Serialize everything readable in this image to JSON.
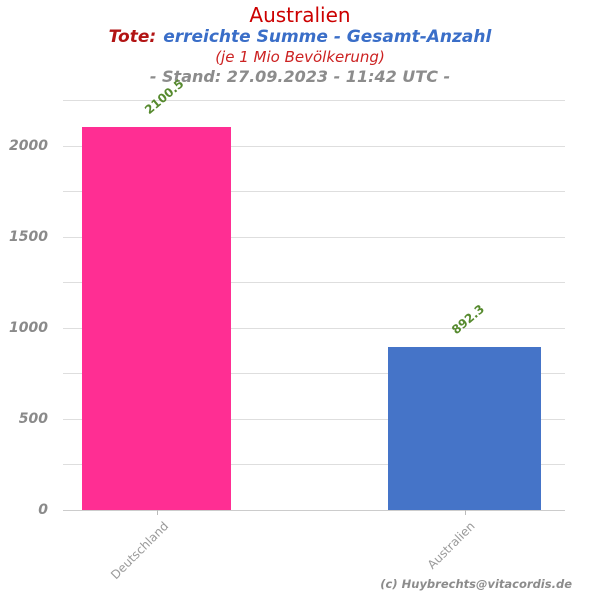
{
  "header": {
    "title": "Australien",
    "subtitle_prefix": "Tote:",
    "subtitle_main": "erreichte Summe - Gesamt-Anzahl",
    "subtitle_note": "(je 1 Mio Bevölkerung)",
    "stand_line": "- Stand: 27.09.2023 - 11:42 UTC -"
  },
  "footer": {
    "credit": "(c) Huybrechts@vitacordis.de"
  },
  "colors": {
    "title_red": "#CC0000",
    "subtitle_red": "#B21414",
    "subtitle_blue": "#3A6EC8",
    "note_red": "#CC2222",
    "gray_text": "#8C8C8C",
    "value_green": "#568A2E",
    "gridline": "#DEDEDE",
    "bar_pink": "#FF2E93",
    "bar_blue": "#4574C8"
  },
  "chart_data": {
    "type": "bar",
    "title": "Australien",
    "subtitle": "Tote: erreichte Summe - Gesamt-Anzahl (je 1 Mio Bevölkerung)",
    "categories": [
      "Deutschland",
      "Australien"
    ],
    "values": [
      2100.5,
      892.3
    ],
    "value_labels": [
      "2100.5",
      "892.3"
    ],
    "bar_colors": [
      "#FF2E93",
      "#4574C8"
    ],
    "xlabel": "",
    "ylabel": "",
    "ylim": [
      0,
      2250
    ],
    "ytick_labels": [
      "0",
      "500",
      "1000",
      "1500",
      "2000"
    ],
    "ytick_values": [
      0,
      500,
      1000,
      1500,
      2000
    ],
    "grid": true,
    "grid_step": 250,
    "legend": false
  }
}
